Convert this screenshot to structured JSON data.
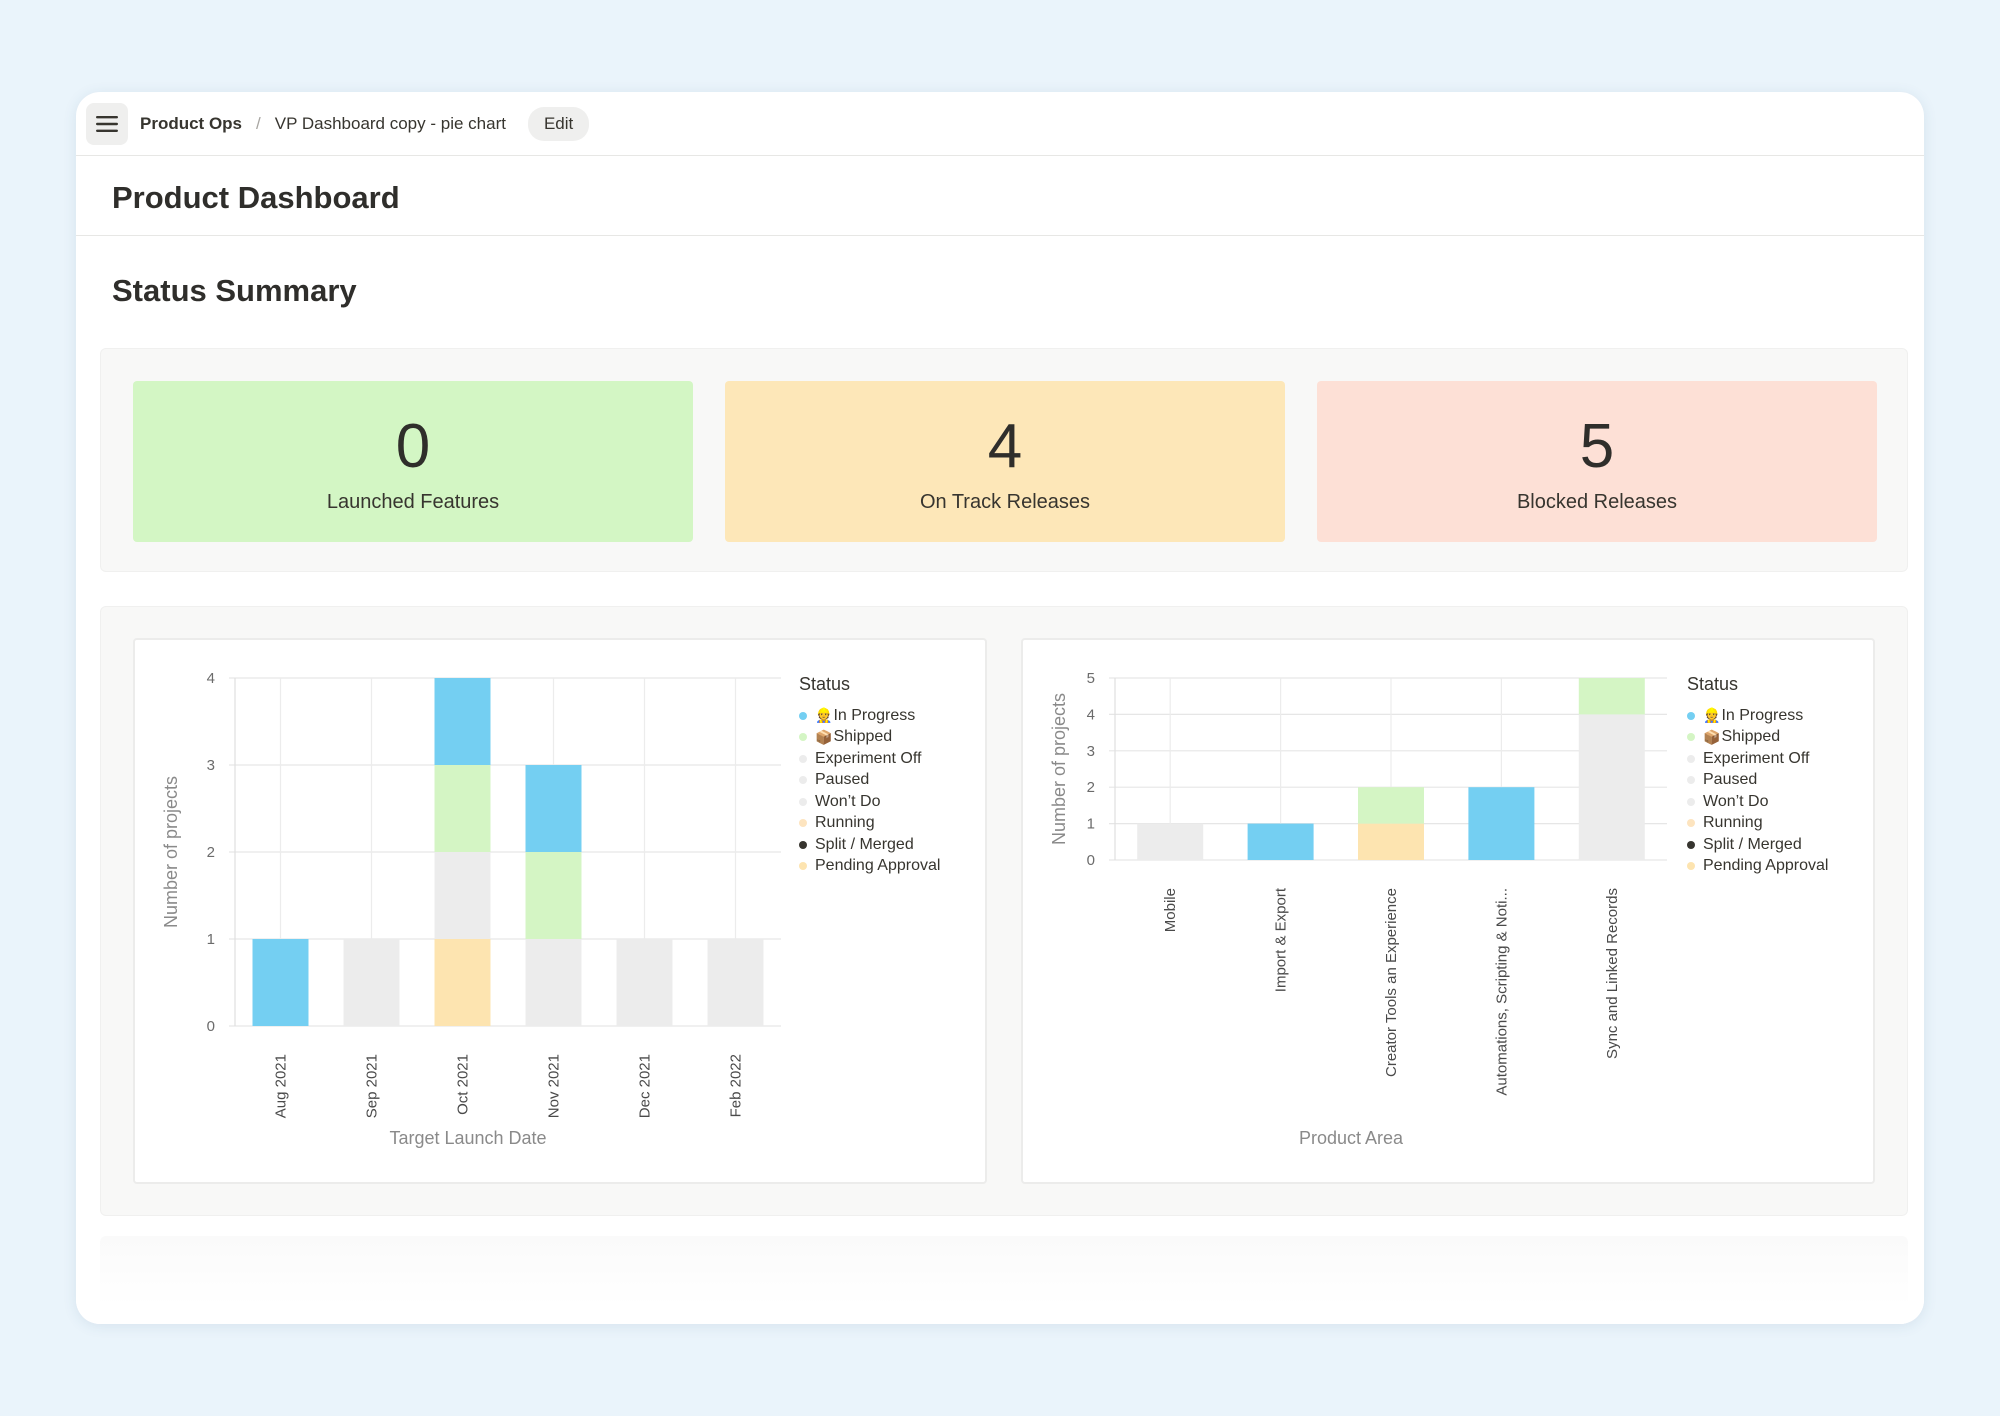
{
  "breadcrumb": {
    "workspace": "Product Ops",
    "separator": "/",
    "page": "VP Dashboard copy - pie chart",
    "edit_label": "Edit"
  },
  "page_title": "Product Dashboard",
  "section_title": "Status Summary",
  "tiles": [
    {
      "value": "0",
      "label": "Launched Features",
      "color": "#d3f6c4"
    },
    {
      "value": "4",
      "label": "On Track Releases",
      "color": "#fde7b8"
    },
    {
      "value": "5",
      "label": "Blocked Releases",
      "color": "#fde0d6"
    }
  ],
  "legend": {
    "title": "Status",
    "items": [
      {
        "emoji": "👷",
        "label": "In Progress",
        "color": "#74cff2"
      },
      {
        "emoji": "📦",
        "label": "Shipped",
        "color": "#d4f5c4"
      },
      {
        "emoji": "",
        "label": "Experiment Off",
        "color": "#ececec"
      },
      {
        "emoji": "",
        "label": "Paused",
        "color": "#ececec"
      },
      {
        "emoji": "",
        "label": "Won’t Do",
        "color": "#ececec"
      },
      {
        "emoji": "",
        "label": "Running",
        "color": "#fde4bf"
      },
      {
        "emoji": "",
        "label": "Split / Merged",
        "color": "#37352f"
      },
      {
        "emoji": "",
        "label": "Pending Approval",
        "color": "#fde4b0"
      }
    ]
  },
  "chart_data": [
    {
      "type": "bar",
      "stacked": true,
      "title": "",
      "xlabel": "Target Launch Date",
      "ylabel": "Number of projects",
      "ylim": [
        0,
        4
      ],
      "yticks": [
        0,
        1,
        2,
        3,
        4
      ],
      "grid": true,
      "legend_position": "right",
      "categories": [
        "Aug 2021",
        "Sep 2021",
        "Oct 2021",
        "Nov 2021",
        "Dec 2021",
        "Feb 2022"
      ],
      "series": [
        {
          "name": "Pending Approval",
          "color": "#fde4b0",
          "values": [
            0,
            0,
            1,
            0,
            0,
            0
          ]
        },
        {
          "name": "Experiment Off",
          "color": "#ececec",
          "values": [
            0,
            1,
            1,
            1,
            1,
            1
          ]
        },
        {
          "name": "Shipped",
          "color": "#d4f5c4",
          "values": [
            0,
            0,
            1,
            1,
            0,
            0
          ]
        },
        {
          "name": "In Progress",
          "color": "#74cff2",
          "values": [
            1,
            0,
            1,
            1,
            0,
            0
          ]
        }
      ]
    },
    {
      "type": "bar",
      "stacked": true,
      "title": "",
      "xlabel": "Product Area",
      "ylabel": "Number of projects",
      "ylim": [
        0,
        5
      ],
      "yticks": [
        0,
        1,
        2,
        3,
        4,
        5
      ],
      "grid": true,
      "legend_position": "right",
      "categories": [
        "Mobile",
        "Import & Export",
        "Creator Tools an Experience",
        "Automations, Scripting & Noti...",
        "Sync and Linked Records"
      ],
      "series": [
        {
          "name": "Pending Approval",
          "color": "#fde4b0",
          "values": [
            0,
            0,
            1,
            0,
            0
          ]
        },
        {
          "name": "Experiment Off",
          "color": "#ececec",
          "values": [
            1,
            0,
            0,
            0,
            4
          ]
        },
        {
          "name": "Shipped",
          "color": "#d4f5c4",
          "values": [
            0,
            0,
            1,
            0,
            1
          ]
        },
        {
          "name": "In Progress",
          "color": "#74cff2",
          "values": [
            0,
            1,
            0,
            2,
            0
          ]
        }
      ]
    }
  ]
}
